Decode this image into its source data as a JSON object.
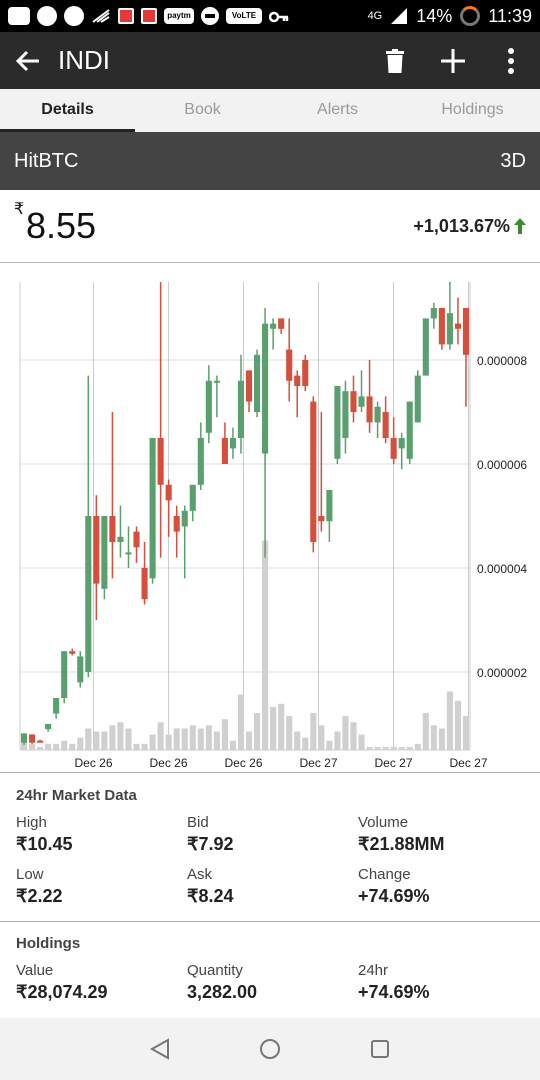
{
  "status_bar": {
    "battery": "14%",
    "time": "11:39",
    "network": "4G",
    "volte": "VoLTE",
    "paytm": "paytm",
    "icons": [
      "message-icon",
      "whatsapp-icon",
      "chat-icon",
      "wifi-icon",
      "app-icon",
      "app-icon",
      "paytm-icon",
      "dnd-icon",
      "volte-icon",
      "key-icon",
      "signal-icon",
      "battery-icon"
    ]
  },
  "appbar": {
    "title": "INDI",
    "icons": [
      "back-arrow-icon",
      "trash-icon",
      "plus-icon",
      "more-vert-icon"
    ]
  },
  "tabs": [
    {
      "label": "Details",
      "active": true
    },
    {
      "label": "Book",
      "active": false
    },
    {
      "label": "Alerts",
      "active": false
    },
    {
      "label": "Holdings",
      "active": false
    }
  ],
  "exchange": {
    "name": "HitBTC",
    "range": "3D"
  },
  "price": {
    "currency": "₹",
    "value": "8.55",
    "change": "+1,013.67%",
    "direction": "up"
  },
  "colors": {
    "up": "#5a9f6e",
    "down": "#d4503c",
    "volume": "#d0d0d0",
    "accent": "#3b8a2e"
  },
  "chart_data": {
    "type": "candlestick",
    "x_tick_labels": [
      "Dec 26",
      "Dec 26",
      "Dec 26",
      "Dec 27",
      "Dec 27",
      "Dec 27"
    ],
    "y_tick_labels": [
      "0.000002",
      "0.000004",
      "0.000006",
      "0.000008"
    ],
    "y_ticks": [
      2e-06,
      4e-06,
      6e-06,
      8e-06
    ],
    "ylim": [
      5e-07,
      9.5e-06
    ],
    "grid": true,
    "volume_max": 1.0,
    "candles": [
      {
        "o": 6.4e-07,
        "h": 8.2e-07,
        "l": 6e-07,
        "c": 8.2e-07,
        "v": 0.03
      },
      {
        "o": 8e-07,
        "h": 8e-07,
        "l": 6.2e-07,
        "c": 6.4e-07,
        "v": 0.02
      },
      {
        "o": 6.8e-07,
        "h": 7e-07,
        "l": 6.4e-07,
        "c": 6.6e-07,
        "v": 0.01
      },
      {
        "o": 9e-07,
        "h": 1e-06,
        "l": 8.5e-07,
        "c": 1e-06,
        "v": 0.02
      },
      {
        "o": 1.2e-06,
        "h": 1.5e-06,
        "l": 1.1e-06,
        "c": 1.5e-06,
        "v": 0.02
      },
      {
        "o": 1.5e-06,
        "h": 2.4e-06,
        "l": 1.4e-06,
        "c": 2.4e-06,
        "v": 0.03
      },
      {
        "o": 2.4e-06,
        "h": 2.45e-06,
        "l": 2.32e-06,
        "c": 2.35e-06,
        "v": 0.02
      },
      {
        "o": 1.8e-06,
        "h": 2.4e-06,
        "l": 1.7e-06,
        "c": 2.3e-06,
        "v": 0.04
      },
      {
        "o": 2e-06,
        "h": 7.7e-06,
        "l": 1.9e-06,
        "c": 5e-06,
        "v": 0.07
      },
      {
        "o": 5e-06,
        "h": 5.4e-06,
        "l": 3e-06,
        "c": 3.7e-06,
        "v": 0.06
      },
      {
        "o": 3.6e-06,
        "h": 5e-06,
        "l": 3.4e-06,
        "c": 5e-06,
        "v": 0.06
      },
      {
        "o": 5e-06,
        "h": 7e-06,
        "l": 3.8e-06,
        "c": 4.5e-06,
        "v": 0.08
      },
      {
        "o": 4.5e-06,
        "h": 5.2e-06,
        "l": 4.2e-06,
        "c": 4.6e-06,
        "v": 0.09
      },
      {
        "o": 4.3e-06,
        "h": 4.8e-06,
        "l": 4e-06,
        "c": 4.3e-06,
        "v": 0.07
      },
      {
        "o": 4.7e-06,
        "h": 4.8e-06,
        "l": 4.1e-06,
        "c": 4.4e-06,
        "v": 0.02
      },
      {
        "o": 4e-06,
        "h": 4.5e-06,
        "l": 3.3e-06,
        "c": 3.4e-06,
        "v": 0.02
      },
      {
        "o": 3.8e-06,
        "h": 6.5e-06,
        "l": 3.7e-06,
        "c": 6.5e-06,
        "v": 0.05
      },
      {
        "o": 6.5e-06,
        "h": 9.5e-06,
        "l": 4.2e-06,
        "c": 5.6e-06,
        "v": 0.09
      },
      {
        "o": 5.6e-06,
        "h": 5.7e-06,
        "l": 4.6e-06,
        "c": 5.3e-06,
        "v": 0.05
      },
      {
        "o": 5e-06,
        "h": 5.2e-06,
        "l": 4.2e-06,
        "c": 4.7e-06,
        "v": 0.07
      },
      {
        "o": 4.8e-06,
        "h": 5.2e-06,
        "l": 3.8e-06,
        "c": 5.1e-06,
        "v": 0.07
      },
      {
        "o": 5.1e-06,
        "h": 5.6e-06,
        "l": 4.9e-06,
        "c": 5.6e-06,
        "v": 0.08
      },
      {
        "o": 5.6e-06,
        "h": 6.8e-06,
        "l": 5.5e-06,
        "c": 6.5e-06,
        "v": 0.07
      },
      {
        "o": 6.6e-06,
        "h": 7.9e-06,
        "l": 6.4e-06,
        "c": 7.6e-06,
        "v": 0.08
      },
      {
        "o": 7.6e-06,
        "h": 7.7e-06,
        "l": 6.9e-06,
        "c": 7.6e-06,
        "v": 0.06
      },
      {
        "o": 6.5e-06,
        "h": 6.8e-06,
        "l": 6e-06,
        "c": 6e-06,
        "v": 0.1
      },
      {
        "o": 6.3e-06,
        "h": 6.7e-06,
        "l": 6.1e-06,
        "c": 6.5e-06,
        "v": 0.03
      },
      {
        "o": 6.5e-06,
        "h": 8.1e-06,
        "l": 6.2e-06,
        "c": 7.6e-06,
        "v": 0.18
      },
      {
        "o": 7.8e-06,
        "h": 7.8e-06,
        "l": 7e-06,
        "c": 7.2e-06,
        "v": 0.06
      },
      {
        "o": 7e-06,
        "h": 8.2e-06,
        "l": 6.9e-06,
        "c": 8.1e-06,
        "v": 0.12
      },
      {
        "o": 6.2e-06,
        "h": 9e-06,
        "l": 4.2e-06,
        "c": 8.7e-06,
        "v": 0.68
      },
      {
        "o": 8.6e-06,
        "h": 8.8e-06,
        "l": 8.2e-06,
        "c": 8.7e-06,
        "v": 0.14
      },
      {
        "o": 8.8e-06,
        "h": 8.8e-06,
        "l": 8.5e-06,
        "c": 8.6e-06,
        "v": 0.15
      },
      {
        "o": 8.2e-06,
        "h": 8.8e-06,
        "l": 7.2e-06,
        "c": 7.6e-06,
        "v": 0.11
      },
      {
        "o": 7.7e-06,
        "h": 7.8e-06,
        "l": 6.9e-06,
        "c": 7.5e-06,
        "v": 0.06
      },
      {
        "o": 8e-06,
        "h": 8.1e-06,
        "l": 7.4e-06,
        "c": 7.5e-06,
        "v": 0.04
      },
      {
        "o": 7.2e-06,
        "h": 7.3e-06,
        "l": 4.3e-06,
        "c": 4.5e-06,
        "v": 0.12
      },
      {
        "o": 5e-06,
        "h": 7e-06,
        "l": 4.7e-06,
        "c": 4.9e-06,
        "v": 0.08
      },
      {
        "o": 4.9e-06,
        "h": 5.5e-06,
        "l": 4.5e-06,
        "c": 5.5e-06,
        "v": 0.03
      },
      {
        "o": 6.1e-06,
        "h": 7.5e-06,
        "l": 6e-06,
        "c": 7.5e-06,
        "v": 0.06
      },
      {
        "o": 6.5e-06,
        "h": 7.6e-06,
        "l": 6.2e-06,
        "c": 7.4e-06,
        "v": 0.11
      },
      {
        "o": 7.4e-06,
        "h": 7.7e-06,
        "l": 6.8e-06,
        "c": 7e-06,
        "v": 0.09
      },
      {
        "o": 7.1e-06,
        "h": 7.8e-06,
        "l": 7e-06,
        "c": 7.3e-06,
        "v": 0.05
      },
      {
        "o": 7.3e-06,
        "h": 8e-06,
        "l": 6.6e-06,
        "c": 6.8e-06,
        "v": 0.01
      },
      {
        "o": 6.8e-06,
        "h": 7.2e-06,
        "l": 6.5e-06,
        "c": 7.1e-06,
        "v": 0.01
      },
      {
        "o": 7e-06,
        "h": 7.3e-06,
        "l": 6.4e-06,
        "c": 6.5e-06,
        "v": 0.01
      },
      {
        "o": 6.5e-06,
        "h": 6.9e-06,
        "l": 6e-06,
        "c": 6.1e-06,
        "v": 0.01
      },
      {
        "o": 6.3e-06,
        "h": 6.6e-06,
        "l": 5.9e-06,
        "c": 6.5e-06,
        "v": 0.01
      },
      {
        "o": 6.1e-06,
        "h": 7.2e-06,
        "l": 6e-06,
        "c": 7.2e-06,
        "v": 0.01
      },
      {
        "o": 6.8e-06,
        "h": 7.8e-06,
        "l": 6.8e-06,
        "c": 7.7e-06,
        "v": 0.02
      },
      {
        "o": 7.7e-06,
        "h": 8.8e-06,
        "l": 7.7e-06,
        "c": 8.8e-06,
        "v": 0.12
      },
      {
        "o": 8.8e-06,
        "h": 9.1e-06,
        "l": 8.6e-06,
        "c": 9e-06,
        "v": 0.08
      },
      {
        "o": 9e-06,
        "h": 9e-06,
        "l": 8.2e-06,
        "c": 8.3e-06,
        "v": 0.07
      },
      {
        "o": 8.3e-06,
        "h": 9.5e-06,
        "l": 8.2e-06,
        "c": 8.9e-06,
        "v": 0.19
      },
      {
        "o": 8.7e-06,
        "h": 9.2e-06,
        "l": 8.3e-06,
        "c": 8.6e-06,
        "v": 0.16
      },
      {
        "o": 9e-06,
        "h": 9e-06,
        "l": 7.1e-06,
        "c": 8.1e-06,
        "v": 0.11
      }
    ]
  },
  "market": {
    "title": "24hr Market Data",
    "items": [
      {
        "label": "High",
        "value": "₹10.45"
      },
      {
        "label": "Bid",
        "value": "₹7.92"
      },
      {
        "label": "Volume",
        "value": "₹21.88MM"
      },
      {
        "label": "Low",
        "value": "₹2.22"
      },
      {
        "label": "Ask",
        "value": "₹8.24"
      },
      {
        "label": "Change",
        "value": "+74.69%"
      }
    ]
  },
  "holdings": {
    "title": "Holdings",
    "items": [
      {
        "label": "Value",
        "value": "₹28,074.29"
      },
      {
        "label": "Quantity",
        "value": "3,282.00"
      },
      {
        "label": "24hr",
        "value": "+74.69%"
      }
    ]
  },
  "navbar": {
    "icons": [
      "back-nav-icon",
      "home-nav-icon",
      "recents-nav-icon"
    ]
  }
}
